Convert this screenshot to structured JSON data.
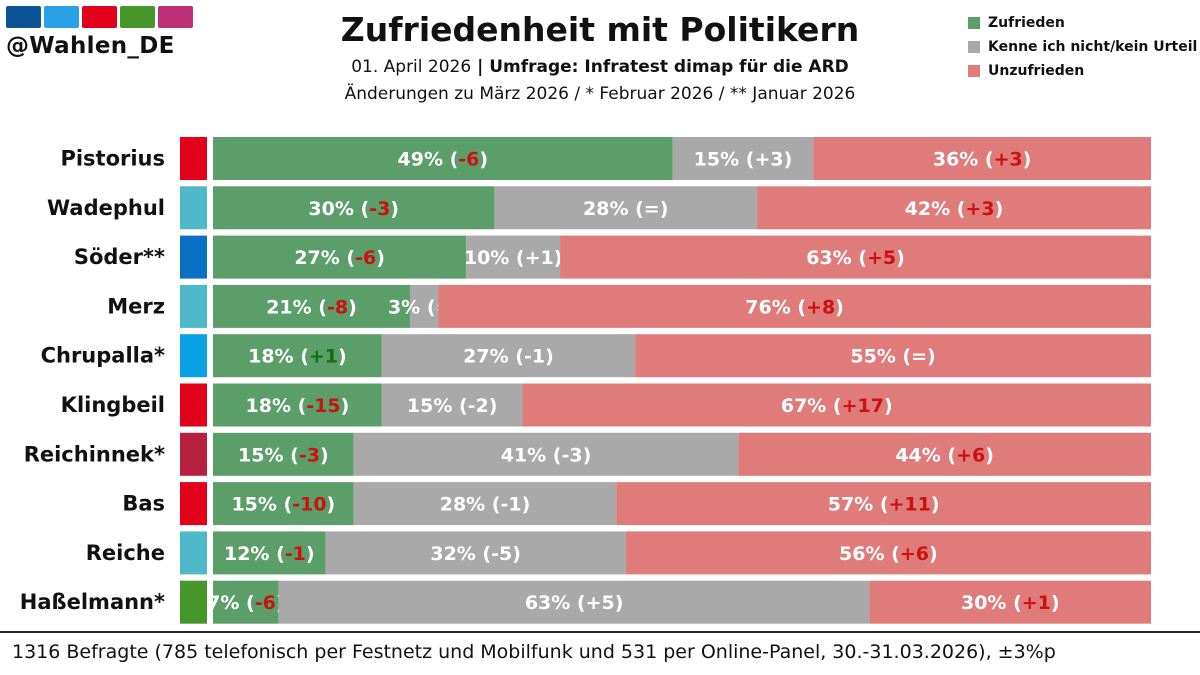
{
  "header": {
    "handle": "@Wahlen_DE",
    "logo_colors": [
      "#0b5394",
      "#2aa0e6",
      "#e2001a",
      "#46962b",
      "#be3075"
    ],
    "title": "Zufriedenheit mit Politikern",
    "subtitle_date": "01. April 2026",
    "subtitle_sep": " | ",
    "subtitle_source": "Umfrage: Infratest dimap für die ARD",
    "subtitle2": "Änderungen zu März 2026 / * Februar 2026 / ** Januar 2026"
  },
  "footer": {
    "text": "1316 Befragte (785 telefonisch per Festnetz und Mobilfunk und 531 per Online-Panel, 30.-31.03.2026), ±3%p"
  },
  "colors": {
    "satisfied": "#5b9e6a",
    "unknown": "#a9a9a9",
    "dissatisfied": "#e07b7b",
    "neg_change": "#cc1111",
    "pos_change_satisfied": "#136b13",
    "pos_change_dissatisfied": "#cc1111",
    "neutral_change": "#ffffff"
  },
  "chart_data": {
    "type": "bar",
    "orientation": "horizontal",
    "stacked": true,
    "xlim": [
      0,
      100
    ],
    "unit": "%",
    "legend": {
      "position": "top-right",
      "entries": [
        "Zufrieden",
        "Kenne ich nicht/kein Urteil",
        "Unzufrieden"
      ]
    },
    "categories": [
      "Pistorius",
      "Wadephul",
      "Söder**",
      "Merz",
      "Chrupalla*",
      "Klingbeil",
      "Reichinnek*",
      "Bas",
      "Reiche",
      "Haßelmann*"
    ],
    "party_colors": [
      "#e2001a",
      "#4fb8c9",
      "#0a70c4",
      "#4fb8c9",
      "#0aa0e6",
      "#e2001a",
      "#b5203f",
      "#e2001a",
      "#4fb8c9",
      "#46962b"
    ],
    "series": [
      {
        "name": "Zufrieden",
        "values": [
          49,
          30,
          27,
          21,
          18,
          18,
          15,
          15,
          12,
          7
        ],
        "changes": [
          "-6",
          "-3",
          "-6",
          "-8",
          "+1",
          "-15",
          "-3",
          "-10",
          "-1",
          "-6"
        ]
      },
      {
        "name": "Kenne ich nicht/kein Urteil",
        "values": [
          15,
          28,
          10,
          3,
          27,
          15,
          41,
          28,
          32,
          63
        ],
        "changes": [
          "+3",
          "=",
          "+1",
          "=",
          "-1",
          "-2",
          "-3",
          "-1",
          "-5",
          "+5"
        ]
      },
      {
        "name": "Unzufrieden",
        "values": [
          36,
          42,
          63,
          76,
          55,
          67,
          44,
          57,
          56,
          30
        ],
        "changes": [
          "+3",
          "+3",
          "+5",
          "+8",
          "=",
          "+17",
          "+6",
          "+11",
          "+6",
          "+1"
        ]
      }
    ]
  }
}
